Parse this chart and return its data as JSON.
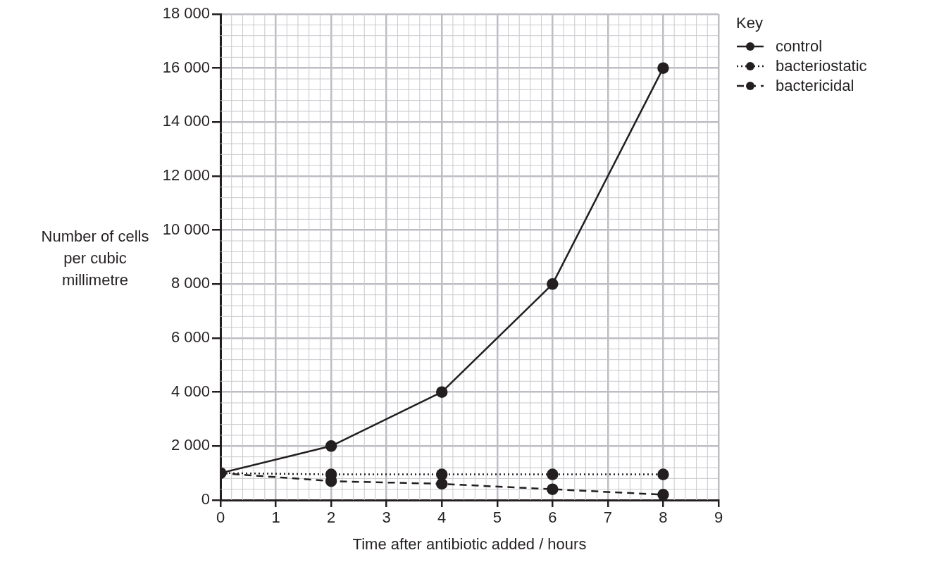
{
  "chart_data": {
    "type": "line",
    "xlabel": "Time after antibiotic added / hours",
    "ylabel": "Number of cells per cubic millimetre",
    "legend_title": "Key",
    "x": [
      0,
      2,
      4,
      6,
      8
    ],
    "series": [
      {
        "name": "control",
        "color": "#231f20",
        "line_style": "solid",
        "values": [
          1000,
          2000,
          4000,
          8000,
          16000
        ]
      },
      {
        "name": "bacteriostatic",
        "color": "#231f20",
        "line_style": "dotted",
        "values": [
          1000,
          950,
          950,
          950,
          950
        ]
      },
      {
        "name": "bactericidal",
        "color": "#231f20",
        "line_style": "dashed",
        "values": [
          1000,
          700,
          600,
          400,
          200
        ]
      }
    ],
    "xlim": [
      0,
      9
    ],
    "xticks": [
      0,
      1,
      2,
      3,
      4,
      5,
      6,
      7,
      8,
      9
    ],
    "ylim": [
      0,
      18000
    ],
    "yticks": [
      0,
      {
        "value": 2000,
        "label": "2 000"
      },
      {
        "value": 4000,
        "label": "4 000"
      },
      {
        "value": 6000,
        "label": "6 000"
      },
      {
        "value": 8000,
        "label": "8 000"
      },
      {
        "value": 10000,
        "label": "10 000"
      },
      {
        "value": 12000,
        "label": "12 000"
      },
      {
        "value": 14000,
        "label": "14 000"
      },
      {
        "value": 16000,
        "label": "16 000"
      },
      {
        "value": 18000,
        "label": "18 000"
      }
    ],
    "grid": true,
    "legend": "top right",
    "marker": "circle"
  }
}
